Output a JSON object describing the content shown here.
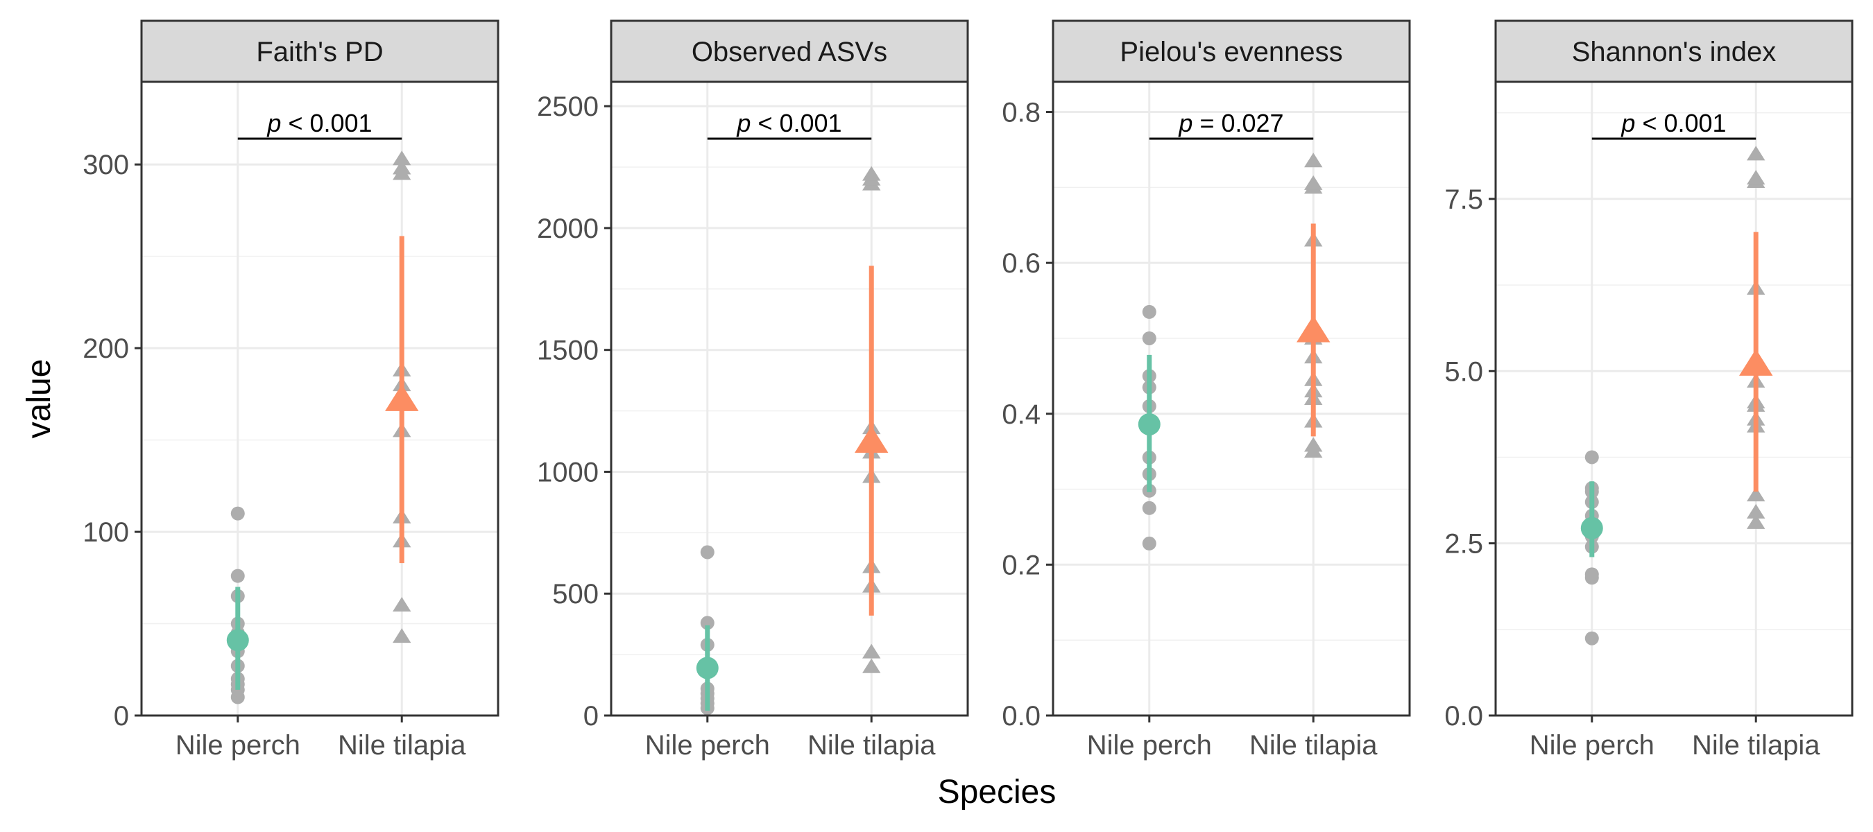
{
  "xlabel": "Species",
  "ylabel": "value",
  "colors": {
    "nile_perch": "#66C2A5",
    "nile_tilapia": "#FC8D62",
    "raw_points": "#ADADAD"
  },
  "chart_data": [
    {
      "type": "scatter",
      "title": "Faith's PD",
      "categories": [
        "Nile perch",
        "Nile tilapia"
      ],
      "ylim": [
        0,
        345
      ],
      "yticks": [
        0,
        100,
        200,
        300
      ],
      "yticks_labels": [
        "0",
        "100",
        "200",
        "300"
      ],
      "points": [
        [
          10,
          14,
          17,
          20,
          27,
          35,
          40,
          45,
          50,
          65,
          76,
          110
        ],
        [
          43,
          60,
          95,
          108,
          155,
          170,
          180,
          188,
          295,
          298,
          303
        ]
      ],
      "mean": [
        41,
        172
      ],
      "error": [
        [
          14,
          70
        ],
        [
          83,
          261
        ]
      ],
      "significance": {
        "prefix": "p",
        "op": "<",
        "value": "0.001"
      }
    },
    {
      "type": "scatter",
      "title": "Observed ASVs",
      "categories": [
        "Nile perch",
        "Nile tilapia"
      ],
      "ylim": [
        0,
        2600
      ],
      "yticks": [
        0,
        500,
        1000,
        1500,
        2000,
        2500
      ],
      "yticks_labels": [
        "0",
        "500",
        "1000",
        "1500",
        "2000",
        "2500"
      ],
      "points": [
        [
          30,
          50,
          70,
          90,
          110,
          190,
          290,
          380,
          670
        ],
        [
          200,
          260,
          530,
          610,
          980,
          1080,
          1130,
          1180,
          2180,
          2200,
          2220
        ]
      ],
      "mean": [
        195,
        1125
      ],
      "error": [
        [
          20,
          370
        ],
        [
          410,
          1845
        ]
      ],
      "significance": {
        "prefix": "p",
        "op": "<",
        "value": "0.001"
      }
    },
    {
      "type": "scatter",
      "title": "Pielou's evenness",
      "categories": [
        "Nile perch",
        "Nile tilapia"
      ],
      "ylim": [
        0,
        0.84
      ],
      "yticks": [
        0,
        0.2,
        0.4,
        0.6,
        0.8
      ],
      "yticks_labels": [
        "0.0",
        "0.2",
        "0.4",
        "0.6",
        "0.8"
      ],
      "points": [
        [
          0.228,
          0.275,
          0.298,
          0.32,
          0.342,
          0.38,
          0.41,
          0.435,
          0.45,
          0.5,
          0.535
        ],
        [
          0.35,
          0.358,
          0.39,
          0.42,
          0.43,
          0.445,
          0.475,
          0.5,
          0.63,
          0.7,
          0.705,
          0.735
        ]
      ],
      "mean": [
        0.386,
        0.51
      ],
      "error": [
        [
          0.296,
          0.478
        ],
        [
          0.37,
          0.652
        ]
      ],
      "significance": {
        "prefix": "p",
        "op": "=",
        "value": "0.027"
      }
    },
    {
      "type": "scatter",
      "title": "Shannon's index",
      "categories": [
        "Nile perch",
        "Nile tilapia"
      ],
      "ylim": [
        0,
        9.2
      ],
      "yticks": [
        0,
        2.5,
        5,
        7.5
      ],
      "yticks_labels": [
        "0.0",
        "2.5",
        "5.0",
        "7.5"
      ],
      "points": [
        [
          1.12,
          2.0,
          2.05,
          2.45,
          2.6,
          2.75,
          2.9,
          3.1,
          3.25,
          3.3,
          3.75
        ],
        [
          2.8,
          2.95,
          3.2,
          4.2,
          4.3,
          4.5,
          4.55,
          4.85,
          6.2,
          7.75,
          7.8,
          8.15
        ]
      ],
      "mean": [
        2.72,
        5.1
      ],
      "error": [
        [
          2.3,
          3.4
        ],
        [
          3.25,
          7.02
        ]
      ],
      "significance": {
        "prefix": "p",
        "op": "<",
        "value": "0.001"
      }
    }
  ]
}
